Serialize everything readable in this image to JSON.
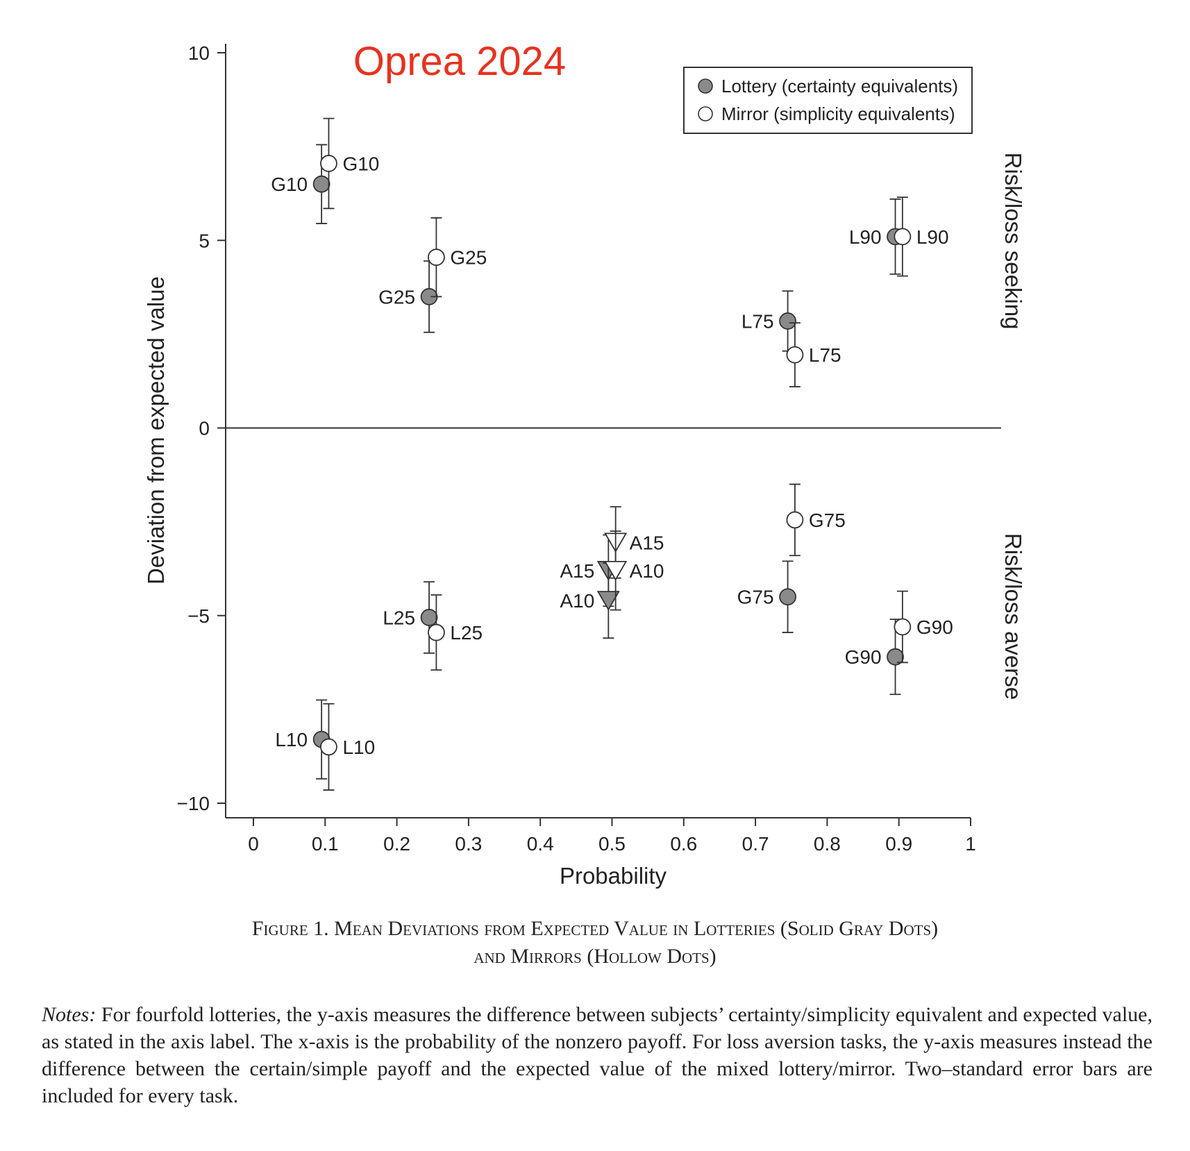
{
  "chart_data": {
    "type": "scatter",
    "title": "",
    "annotation": "Oprea 2024",
    "xlabel": "Probability",
    "ylabel": "Deviation from expected value",
    "xlim": [
      -0.04,
      1
    ],
    "ylim": [
      -10.35,
      10.3
    ],
    "xticks": [
      0,
      0.1,
      0.2,
      0.3,
      0.4,
      0.5,
      0.6,
      0.7,
      0.8,
      0.9,
      1
    ],
    "yticks": [
      10,
      5,
      0,
      -5,
      -10
    ],
    "xtick_labels": [
      "0",
      "0.1",
      "0.2",
      "0.3",
      "0.4",
      "0.5",
      "0.6",
      "0.7",
      "0.8",
      "0.9",
      "1"
    ],
    "ytick_labels": [
      "10",
      "5",
      "0",
      "−5",
      "−10"
    ],
    "right_labels": {
      "top": "Risk/loss seeking",
      "bottom": "Risk/loss averse"
    },
    "grid": false,
    "legend_position": "top-right",
    "series": [
      {
        "name": "Lottery (certainty equivalents)",
        "color": "#8a8a8a",
        "points": [
          {
            "label": "G10",
            "x": 0.095,
            "y": 6.5,
            "err": 1.05,
            "marker": "circle",
            "label_side": "left"
          },
          {
            "label": "G25",
            "x": 0.245,
            "y": 3.5,
            "err": 0.95,
            "marker": "circle",
            "label_side": "left"
          },
          {
            "label": "L75",
            "x": 0.745,
            "y": 2.85,
            "err": 0.8,
            "marker": "circle",
            "label_side": "left"
          },
          {
            "label": "L90",
            "x": 0.895,
            "y": 5.1,
            "err": 1.0,
            "marker": "circle",
            "label_side": "left"
          },
          {
            "label": "L25",
            "x": 0.245,
            "y": -5.05,
            "err": 0.95,
            "marker": "circle",
            "label_side": "left"
          },
          {
            "label": "L10",
            "x": 0.095,
            "y": -8.3,
            "err": 1.05,
            "marker": "circle",
            "label_side": "left"
          },
          {
            "label": "G75",
            "x": 0.745,
            "y": -4.5,
            "err": 0.95,
            "marker": "circle",
            "label_side": "left"
          },
          {
            "label": "G90",
            "x": 0.895,
            "y": -6.1,
            "err": 1.0,
            "marker": "circle",
            "label_side": "left"
          },
          {
            "label": "A15",
            "x": 0.495,
            "y": -3.8,
            "err": 0.95,
            "marker": "triangle",
            "label_side": "left"
          },
          {
            "label": "A10",
            "x": 0.495,
            "y": -4.6,
            "err": 1.0,
            "marker": "triangle",
            "label_side": "left"
          }
        ]
      },
      {
        "name": "Mirror (simplicity equivalents)",
        "color": "#ffffff",
        "points": [
          {
            "label": "G10",
            "x": 0.105,
            "y": 7.05,
            "err": 1.2,
            "marker": "circle",
            "label_side": "right"
          },
          {
            "label": "G25",
            "x": 0.255,
            "y": 4.55,
            "err": 1.05,
            "marker": "circle",
            "label_side": "right"
          },
          {
            "label": "L75",
            "x": 0.755,
            "y": 1.95,
            "err": 0.85,
            "marker": "circle",
            "label_side": "right"
          },
          {
            "label": "L90",
            "x": 0.905,
            "y": 5.1,
            "err": 1.05,
            "marker": "circle",
            "label_side": "right"
          },
          {
            "label": "L25",
            "x": 0.255,
            "y": -5.45,
            "err": 1.0,
            "marker": "circle",
            "label_side": "right"
          },
          {
            "label": "L10",
            "x": 0.105,
            "y": -8.5,
            "err": 1.15,
            "marker": "circle",
            "label_side": "right"
          },
          {
            "label": "G75",
            "x": 0.755,
            "y": -2.45,
            "err": 0.95,
            "marker": "circle",
            "label_side": "right"
          },
          {
            "label": "G90",
            "x": 0.905,
            "y": -5.3,
            "err": 0.95,
            "marker": "circle",
            "label_side": "right"
          },
          {
            "label": "A15",
            "x": 0.505,
            "y": -3.05,
            "err": 0.95,
            "marker": "triangle",
            "label_side": "right"
          },
          {
            "label": "A10",
            "x": 0.505,
            "y": -3.8,
            "err": 1.05,
            "marker": "triangle",
            "label_side": "right"
          }
        ]
      }
    ]
  },
  "annotation_color": "#e8321e",
  "caption": {
    "line1": "Figure 1. Mean Deviations from Expected Value in Lotteries (Solid Gray Dots)",
    "line2": "and Mirrors (Hollow Dots)"
  },
  "notes": {
    "label": "Notes:",
    "text": " For fourfold lotteries, the y-axis measures the difference between subjects’ certainty/simplicity equivalent and expected value, as stated in the axis label. The x-axis is the probability of the nonzero payoff. For loss aversion tasks, the y-axis measures instead the difference between the certain/simple payoff and the expected value of the mixed lottery/mirror. Two–standard error bars are included for every task."
  }
}
